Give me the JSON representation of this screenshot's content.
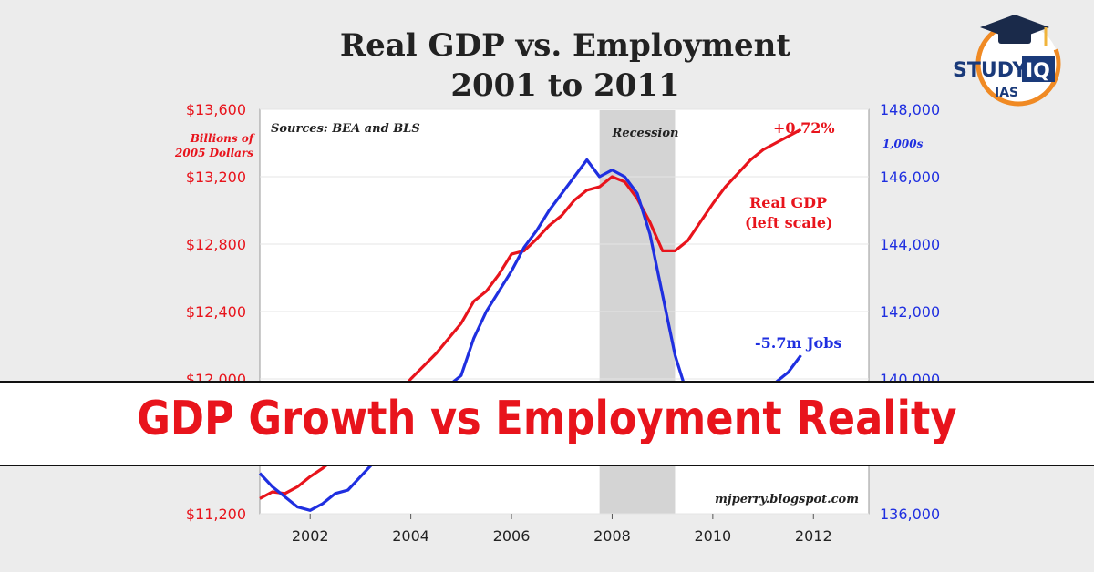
{
  "chart_data": {
    "type": "line",
    "title": "Real GDP vs. Employment",
    "subtitle": "2001 to 2011",
    "x_ticks": [
      2002,
      2004,
      2006,
      2008,
      2010,
      2012
    ],
    "xlim": [
      2001,
      2013.1
    ],
    "left_axis": {
      "ylim": [
        11200,
        13600
      ],
      "ticks": [
        "$11,200",
        "$11,600",
        "$12,000",
        "$12,400",
        "$12,800",
        "$13,200",
        "$13,600"
      ],
      "tick_values": [
        11200,
        11600,
        12000,
        12400,
        12800,
        13200,
        13600
      ],
      "unit_line1": "Billions of",
      "unit_line2": "2005 Dollars",
      "color": "#e8141c"
    },
    "right_axis": {
      "ylim": [
        136000,
        148000
      ],
      "ticks": [
        "136,000",
        "138,000",
        "140,000",
        "142,000",
        "144,000",
        "146,000",
        "148,000"
      ],
      "tick_values": [
        136000,
        138000,
        140000,
        142000,
        144000,
        146000,
        148000
      ],
      "unit": "1,000s",
      "color": "#1f2fe0"
    },
    "recession": {
      "start": 2007.75,
      "end": 2009.25,
      "label": "Recession"
    },
    "sources_label": "Sources: BEA and BLS",
    "watermark": "mjperry.blogspot.com",
    "series": [
      {
        "name": "Real GDP",
        "axis": "left",
        "color": "#e8141c",
        "x": [
          2001.0,
          2001.25,
          2001.5,
          2001.75,
          2002.0,
          2002.25,
          2002.5,
          2002.75,
          2003.0,
          2003.5,
          2004.0,
          2004.5,
          2005.0,
          2005.25,
          2005.5,
          2005.75,
          2006.0,
          2006.25,
          2006.5,
          2006.75,
          2007.0,
          2007.25,
          2007.5,
          2007.75,
          2008.0,
          2008.25,
          2008.5,
          2008.75,
          2009.0,
          2009.25,
          2009.5,
          2009.75,
          2010.0,
          2010.25,
          2010.5,
          2010.75,
          2011.0,
          2011.25,
          2011.5,
          2011.75
        ],
        "values": [
          11290,
          11330,
          11320,
          11360,
          11420,
          11470,
          11530,
          11590,
          11650,
          11830,
          12000,
          12150,
          12330,
          12460,
          12520,
          12620,
          12740,
          12760,
          12830,
          12910,
          12970,
          13060,
          13120,
          13140,
          13200,
          13170,
          13070,
          12930,
          12760,
          12760,
          12820,
          12930,
          13040,
          13140,
          13220,
          13300,
          13360,
          13400,
          13440,
          13480
        ]
      },
      {
        "name": "",
        "axis": "right",
        "color": "#1f2fe0",
        "x": [
          2001.0,
          2001.25,
          2001.5,
          2001.75,
          2002.0,
          2002.25,
          2002.5,
          2002.75,
          2003.0,
          2003.25,
          2003.5,
          2003.75,
          2004.0,
          2004.5,
          2005.0,
          2005.25,
          2005.5,
          2005.75,
          2006.0,
          2006.25,
          2006.5,
          2006.75,
          2007.0,
          2007.25,
          2007.5,
          2007.75,
          2008.0,
          2008.25,
          2008.5,
          2008.75,
          2009.0,
          2009.25,
          2009.5,
          2009.75,
          2010.0,
          2010.25,
          2010.5,
          2010.75,
          2011.0,
          2011.25,
          2011.5,
          2011.75
        ],
        "values": [
          137200,
          136800,
          136500,
          136200,
          136100,
          136300,
          136600,
          136700,
          137100,
          137500,
          137900,
          138300,
          138800,
          139500,
          140100,
          141200,
          142000,
          142600,
          143200,
          143900,
          144400,
          145000,
          145500,
          146000,
          146500,
          146000,
          146200,
          146000,
          145500,
          144300,
          142500,
          140700,
          139500,
          139000,
          138900,
          139100,
          139300,
          139500,
          139700,
          139900,
          140200,
          140700
        ]
      }
    ],
    "annotations": [
      {
        "text": "+0.72%",
        "color": "#e8141c"
      },
      {
        "text": "Real GDP",
        "color": "#e8141c"
      },
      {
        "text": "(left scale)",
        "color": "#e8141c"
      },
      {
        "text": "-5.7m Jobs",
        "color": "#1f2fe0"
      }
    ]
  },
  "banner": {
    "text": "GDP Growth vs Employment Reality"
  },
  "logo": {
    "study": "STUDY",
    "iq": "IQ",
    "ias": "IAS"
  },
  "colors": {
    "banner_text": "#e8141c",
    "logo_blue": "#1a3a7a",
    "logo_orange": "#f08a24"
  }
}
